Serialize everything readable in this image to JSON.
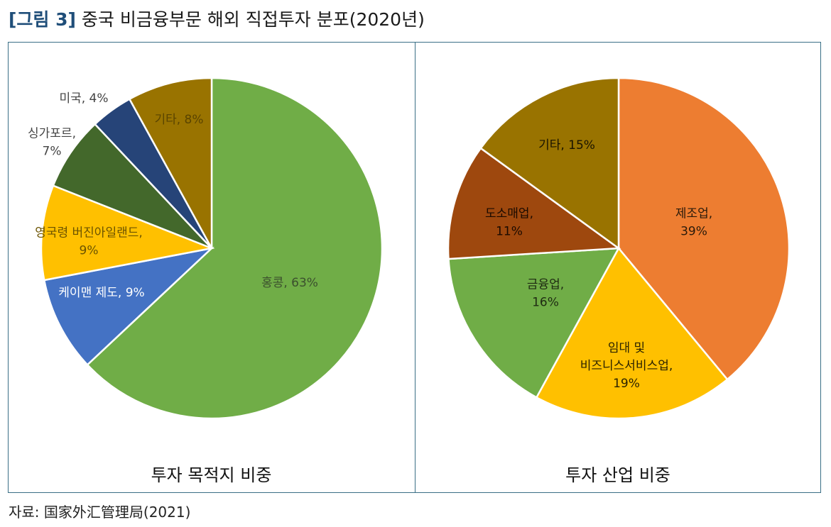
{
  "figure": {
    "number": "[그림 3]",
    "title": "중국 비금융부문 해외 직접투자 분포(2020년)"
  },
  "source": "자료: 国家外汇管理局(2021)",
  "chart_data": [
    {
      "type": "pie",
      "title": "투자 목적지 비중",
      "slices": [
        {
          "label": [
            "홍콩, 63%"
          ],
          "value": 63,
          "color": "#70ad47",
          "text_color": "#3b4f2e"
        },
        {
          "label": [
            "케이맨 제도, 9%"
          ],
          "value": 9,
          "color": "#4472c4",
          "text_color": "#ffffff"
        },
        {
          "label": [
            "영국령 버진아일랜드,",
            "9%"
          ],
          "value": 9,
          "color": "#ffc000",
          "text_color": "#6b5300"
        },
        {
          "label": [
            "싱가포르,",
            "7%"
          ],
          "value": 7,
          "color": "#43682b",
          "text_color": "#444444"
        },
        {
          "label": [
            "미국, 4%"
          ],
          "value": 4,
          "color": "#264478",
          "text_color": "#444444"
        },
        {
          "label": [
            "기타, 8%"
          ],
          "value": 8,
          "color": "#997300",
          "text_color": "#5a4400"
        }
      ]
    },
    {
      "type": "pie",
      "title": "투자 산업 비중",
      "slices": [
        {
          "label": [
            "제조업,",
            "39%"
          ],
          "value": 39,
          "color": "#ed7d31",
          "text_color": "#2a1a0a"
        },
        {
          "label": [
            "임대 및",
            "비즈니스서비스업,",
            "19%"
          ],
          "value": 19,
          "color": "#ffc000",
          "text_color": "#2a2200"
        },
        {
          "label": [
            "금융업,",
            "16%"
          ],
          "value": 16,
          "color": "#70ad47",
          "text_color": "#1e2a12"
        },
        {
          "label": [
            "도소매업,",
            "11%"
          ],
          "value": 11,
          "color": "#9e480e",
          "text_color": "#1a0a00"
        },
        {
          "label": [
            "기타, 15%"
          ],
          "value": 15,
          "color": "#997300",
          "text_color": "#1a1400"
        }
      ]
    }
  ]
}
